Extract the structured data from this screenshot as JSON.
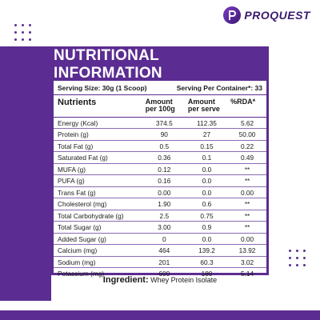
{
  "brand": {
    "name": "PROQUEST",
    "accent_color": "#5b2c91",
    "logo_icon": "p-monogram-icon"
  },
  "panel": {
    "title": "NUTRITIONAL INFORMATION",
    "serving_size": "Serving Size: 30g (1 Scoop)",
    "servings_per_container": "Serving Per Container*: 33",
    "headers": {
      "nutrients": "Nutrients",
      "per_100g": "Amount per 100g",
      "per_serve": "Amount per serve",
      "rda": "%RDA*"
    },
    "rows": [
      {
        "name": "Energy (Kcal)",
        "per_100g": "374.5",
        "per_serve": "112.35",
        "rda": "5.62"
      },
      {
        "name": "Protein (g)",
        "per_100g": "90",
        "per_serve": "27",
        "rda": "50.00"
      },
      {
        "name": "Total Fat (g)",
        "per_100g": "0.5",
        "per_serve": "0.15",
        "rda": "0.22"
      },
      {
        "name": "Saturated Fat (g)",
        "per_100g": "0.36",
        "per_serve": "0.1",
        "rda": "0.49"
      },
      {
        "name": "MUFA (g)",
        "per_100g": "0.12",
        "per_serve": "0.0",
        "rda": "**"
      },
      {
        "name": "PUFA (g)",
        "per_100g": "0.16",
        "per_serve": "0.0",
        "rda": "**"
      },
      {
        "name": "Trans Fat (g)",
        "per_100g": "0.00",
        "per_serve": "0.0",
        "rda": "0.00"
      },
      {
        "name": "Cholesterol (mg)",
        "per_100g": "1.90",
        "per_serve": "0.6",
        "rda": "**"
      },
      {
        "name": "Total Carbohydrate (g)",
        "per_100g": "2.5",
        "per_serve": "0.75",
        "rda": "**"
      },
      {
        "name": "Total Sugar (g)",
        "per_100g": "3.00",
        "per_serve": "0.9",
        "rda": "**"
      },
      {
        "name": "Added Sugar (g)",
        "per_100g": "0",
        "per_serve": "0.0",
        "rda": "0.00"
      },
      {
        "name": "Calcium (mg)",
        "per_100g": "464",
        "per_serve": "139.2",
        "rda": "13.92"
      },
      {
        "name": "Sodium (mg)",
        "per_100g": "201",
        "per_serve": "60.3",
        "rda": "3.02"
      },
      {
        "name": "Potassium (mg)",
        "per_100g": "600",
        "per_serve": "180",
        "rda": "5.14"
      }
    ]
  },
  "ingredient": {
    "label": "Ingredient:",
    "value": " Whey Protein Isolate"
  }
}
